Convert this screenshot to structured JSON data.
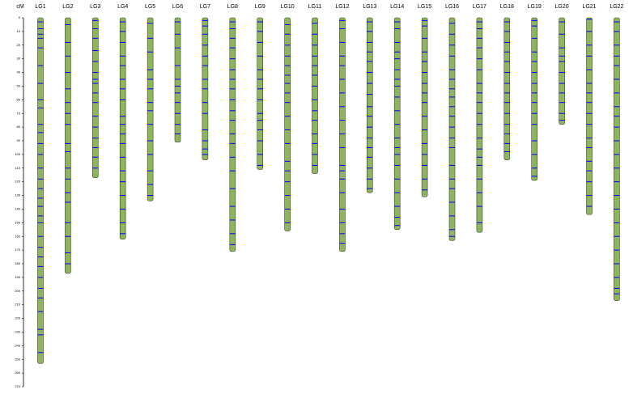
{
  "chart_data": {
    "type": "linkage_map",
    "ylabel": "cM",
    "ylim": [
      0,
      270
    ],
    "yticks": [
      0,
      10,
      20,
      30,
      40,
      50,
      60,
      70,
      80,
      90,
      100,
      110,
      120,
      130,
      140,
      150,
      160,
      170,
      180,
      190,
      200,
      210,
      220,
      230,
      240,
      250,
      260,
      270
    ],
    "bar_color": "#8fb35e",
    "marker_color": "#0000ff",
    "groups": [
      {
        "name": "LG1",
        "length": 253,
        "markers": [
          3,
          8,
          12,
          15,
          22,
          35,
          48,
          60,
          66,
          78,
          84,
          92,
          100,
          110,
          118,
          125,
          132,
          138,
          145,
          150,
          160,
          168,
          175,
          182,
          190,
          198,
          205,
          215,
          228,
          232,
          245
        ]
      },
      {
        "name": "LG2",
        "length": 187,
        "markers": [
          5,
          18,
          28,
          40,
          52,
          62,
          70,
          78,
          92,
          98,
          110,
          118,
          128,
          135,
          150,
          160,
          172,
          180
        ]
      },
      {
        "name": "LG3",
        "length": 117,
        "markers": [
          2,
          8,
          15,
          24,
          32,
          40,
          45,
          48,
          55,
          62,
          72,
          80,
          88,
          95,
          102,
          110
        ]
      },
      {
        "name": "LG4",
        "length": 162,
        "markers": [
          3,
          10,
          18,
          28,
          35,
          45,
          52,
          60,
          72,
          78,
          85,
          92,
          102,
          112,
          120,
          130,
          140,
          150,
          158
        ]
      },
      {
        "name": "LG5",
        "length": 134,
        "markers": [
          4,
          15,
          25,
          38,
          45,
          52,
          62,
          68,
          78,
          90,
          100,
          112,
          122,
          130
        ]
      },
      {
        "name": "LG6",
        "length": 91,
        "markers": [
          3,
          12,
          22,
          35,
          45,
          50,
          55,
          62,
          70,
          78,
          85
        ]
      },
      {
        "name": "LG7",
        "length": 104,
        "markers": [
          2,
          6,
          12,
          20,
          28,
          35,
          45,
          52,
          62,
          70,
          82,
          90,
          96,
          100
        ]
      },
      {
        "name": "LG8",
        "length": 171,
        "markers": [
          3,
          8,
          15,
          22,
          30,
          38,
          45,
          52,
          60,
          68,
          75,
          85,
          92,
          102,
          112,
          125,
          138,
          148,
          158,
          166
        ]
      },
      {
        "name": "LG9",
        "length": 111,
        "markers": [
          3,
          10,
          18,
          28,
          38,
          45,
          52,
          60,
          70,
          75,
          82,
          90,
          100,
          108
        ]
      },
      {
        "name": "LG10",
        "length": 156,
        "markers": [
          5,
          12,
          20,
          28,
          35,
          42,
          48,
          55,
          62,
          72,
          82,
          92,
          105,
          112,
          120,
          130,
          140,
          150
        ]
      },
      {
        "name": "LG11",
        "length": 114,
        "markers": [
          4,
          12,
          20,
          28,
          35,
          42,
          50,
          60,
          68,
          75,
          85,
          92,
          100,
          108
        ]
      },
      {
        "name": "LG12",
        "length": 171,
        "markers": [
          2,
          8,
          18,
          28,
          35,
          45,
          55,
          65,
          75,
          85,
          95,
          108,
          112,
          118,
          128,
          140,
          150,
          158,
          165
        ]
      },
      {
        "name": "LG13",
        "length": 128,
        "markers": [
          3,
          10,
          18,
          25,
          32,
          40,
          48,
          56,
          65,
          72,
          80,
          88,
          95,
          102,
          110,
          118,
          125
        ]
      },
      {
        "name": "LG14",
        "length": 155,
        "markers": [
          3,
          8,
          18,
          25,
          30,
          38,
          45,
          50,
          58,
          68,
          78,
          88,
          95,
          100,
          108,
          118,
          128,
          138,
          146,
          152
        ]
      },
      {
        "name": "LG15",
        "length": 131,
        "markers": [
          2,
          6,
          15,
          25,
          32,
          40,
          48,
          55,
          62,
          72,
          82,
          92,
          100,
          108,
          118,
          126
        ]
      },
      {
        "name": "LG16",
        "length": 163,
        "markers": [
          4,
          12,
          20,
          28,
          38,
          45,
          52,
          58,
          65,
          72,
          80,
          88,
          95,
          108,
          118,
          125,
          135,
          145,
          155,
          160
        ]
      },
      {
        "name": "LG17",
        "length": 157,
        "markers": [
          3,
          8,
          15,
          22,
          30,
          38,
          48,
          55,
          62,
          70,
          78,
          88,
          96,
          102,
          108,
          118,
          128,
          138,
          150
        ]
      },
      {
        "name": "LG18",
        "length": 104,
        "markers": [
          3,
          10,
          18,
          25,
          32,
          40,
          48,
          55,
          62,
          70,
          78,
          85,
          92,
          98
        ]
      },
      {
        "name": "LG19",
        "length": 119,
        "markers": [
          2,
          6,
          15,
          25,
          32,
          40,
          48,
          55,
          62,
          70,
          78,
          90,
          100,
          110,
          116
        ]
      },
      {
        "name": "LG20",
        "length": 78,
        "markers": [
          3,
          12,
          22,
          28,
          32,
          40,
          48,
          55,
          62,
          70,
          75
        ]
      },
      {
        "name": "LG21",
        "length": 144,
        "markers": [
          1,
          10,
          20,
          28,
          38,
          48,
          55,
          62,
          70,
          78,
          88,
          95,
          105,
          112,
          120,
          130,
          138
        ]
      },
      {
        "name": "LG22",
        "length": 207,
        "markers": [
          3,
          10,
          20,
          28,
          35,
          45,
          55,
          65,
          72,
          80,
          90,
          100,
          110,
          120,
          130,
          140,
          150,
          160,
          170,
          180,
          190,
          198,
          202
        ]
      }
    ]
  }
}
